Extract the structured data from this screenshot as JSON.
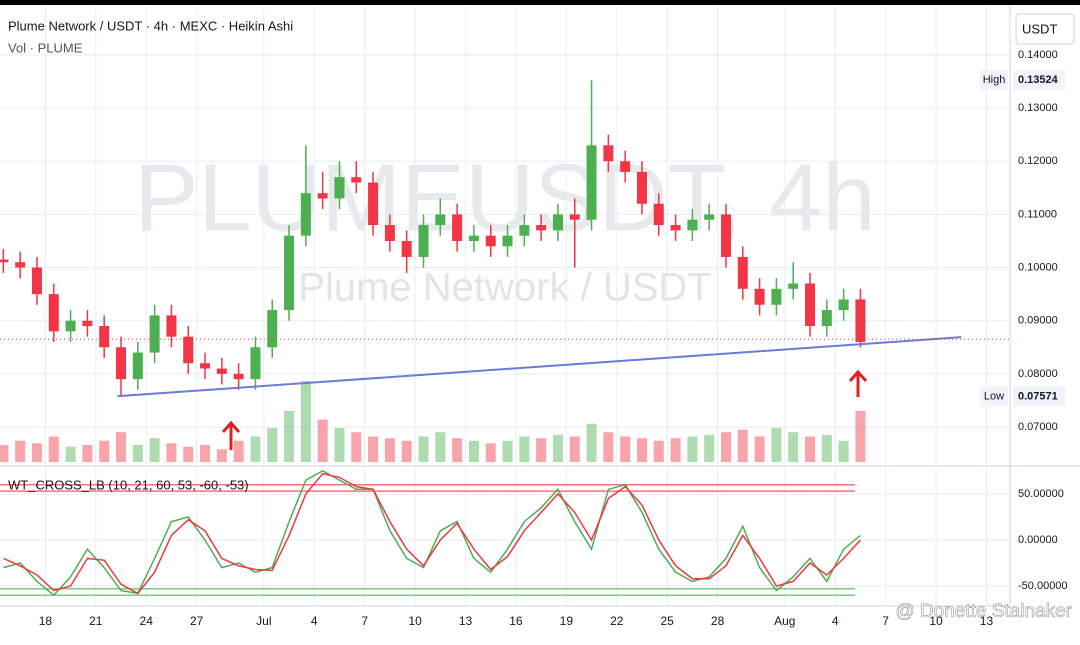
{
  "chart_data": [
    {
      "type": "candlestick",
      "title": "Plume Network / USDT · 4h · MEXC · Heikin Ashi",
      "subtitle": "Vol · PLUME",
      "watermark": "PLUMEUSDT, 4h",
      "watermark_subtitle": "Plume Network / USDT",
      "currency": "USDT",
      "x": [
        15.5,
        16.5,
        17.5,
        18.5,
        19.5,
        20.5,
        21.5,
        22.5,
        23.5,
        24.5,
        25.5,
        26.5,
        27.5,
        28.5,
        29.5,
        30.5,
        31.5,
        32.5,
        33.5,
        34.5,
        35.5,
        36.5,
        37.5,
        38.5,
        39.5,
        40.5,
        41.5,
        42.5,
        43.5,
        44.5,
        45.5,
        46.5,
        47.5,
        48.5,
        49.5,
        50.5,
        51.5,
        52.5,
        53.5,
        54.5,
        55.5,
        56.5,
        57.5,
        58.5,
        59.5,
        60.5,
        61.5,
        62.5,
        63.5,
        64.5,
        65.5,
        66.5
      ],
      "open": [
        0.1015,
        0.101,
        0.1,
        0.095,
        0.088,
        0.09,
        0.089,
        0.085,
        0.079,
        0.084,
        0.091,
        0.087,
        0.082,
        0.081,
        0.08,
        0.079,
        0.085,
        0.092,
        0.106,
        0.114,
        0.113,
        0.117,
        0.116,
        0.108,
        0.105,
        0.102,
        0.108,
        0.11,
        0.105,
        0.106,
        0.104,
        0.106,
        0.108,
        0.107,
        0.11,
        0.109,
        0.123,
        0.12,
        0.118,
        0.112,
        0.108,
        0.107,
        0.109,
        0.11,
        0.102,
        0.096,
        0.093,
        0.096,
        0.097,
        0.089,
        0.092,
        0.094
      ],
      "high": [
        0.1035,
        0.103,
        0.102,
        0.097,
        0.092,
        0.092,
        0.091,
        0.087,
        0.086,
        0.093,
        0.093,
        0.089,
        0.084,
        0.083,
        0.082,
        0.087,
        0.094,
        0.108,
        0.123,
        0.118,
        0.12,
        0.12,
        0.118,
        0.11,
        0.107,
        0.11,
        0.113,
        0.112,
        0.108,
        0.108,
        0.108,
        0.11,
        0.11,
        0.112,
        0.113,
        0.13524,
        0.125,
        0.122,
        0.12,
        0.114,
        0.11,
        0.111,
        0.112,
        0.112,
        0.104,
        0.098,
        0.098,
        0.101,
        0.099,
        0.094,
        0.096,
        0.096
      ],
      "low": [
        0.099,
        0.098,
        0.093,
        0.086,
        0.086,
        0.087,
        0.083,
        0.07571,
        0.077,
        0.082,
        0.085,
        0.08,
        0.079,
        0.078,
        0.077,
        0.077,
        0.083,
        0.09,
        0.104,
        0.111,
        0.111,
        0.114,
        0.106,
        0.103,
        0.099,
        0.1,
        0.106,
        0.103,
        0.103,
        0.102,
        0.102,
        0.104,
        0.105,
        0.105,
        0.1,
        0.107,
        0.118,
        0.116,
        0.11,
        0.106,
        0.105,
        0.105,
        0.107,
        0.1,
        0.094,
        0.091,
        0.091,
        0.094,
        0.087,
        0.087,
        0.09,
        0.085
      ],
      "close": [
        0.101,
        0.1,
        0.095,
        0.088,
        0.09,
        0.089,
        0.085,
        0.079,
        0.084,
        0.091,
        0.087,
        0.082,
        0.081,
        0.08,
        0.079,
        0.085,
        0.092,
        0.106,
        0.114,
        0.113,
        0.117,
        0.116,
        0.108,
        0.105,
        0.102,
        0.108,
        0.11,
        0.105,
        0.106,
        0.104,
        0.106,
        0.108,
        0.107,
        0.11,
        0.109,
        0.123,
        0.12,
        0.118,
        0.112,
        0.108,
        0.107,
        0.109,
        0.11,
        0.102,
        0.096,
        0.093,
        0.096,
        0.097,
        0.089,
        0.092,
        0.094,
        0.086
      ],
      "volume": [
        20,
        25,
        22,
        30,
        18,
        20,
        25,
        35,
        20,
        28,
        22,
        18,
        20,
        15,
        25,
        30,
        40,
        60,
        95,
        50,
        40,
        35,
        30,
        28,
        25,
        30,
        35,
        28,
        25,
        22,
        25,
        30,
        28,
        32,
        30,
        45,
        35,
        30,
        28,
        25,
        28,
        30,
        32,
        35,
        38,
        30,
        40,
        35,
        30,
        32,
        25,
        60
      ],
      "volume_lim": [
        0,
        100
      ],
      "up_color": "#4caf50",
      "down_color": "#f23645",
      "xlim": [
        15.3,
        75.4
      ],
      "xticks": [
        18,
        21,
        24,
        27,
        {
          "value": 31,
          "label": "Jul"
        },
        {
          "value": 34,
          "label": "4"
        },
        {
          "value": 37,
          "label": "7"
        },
        {
          "value": 40,
          "label": "10"
        },
        {
          "value": 43,
          "label": "13"
        },
        {
          "value": 46,
          "label": "16"
        },
        {
          "value": 49,
          "label": "19"
        },
        {
          "value": 52,
          "label": "22"
        },
        {
          "value": 55,
          "label": "25"
        },
        {
          "value": 58,
          "label": "28"
        },
        {
          "value": 62,
          "label": "Aug"
        },
        {
          "value": 65,
          "label": "4"
        },
        {
          "value": 68,
          "label": "7"
        },
        {
          "value": 71,
          "label": "10"
        },
        {
          "value": 74,
          "label": "13"
        }
      ],
      "ylim": [
        0.06285,
        0.1494
      ],
      "yticks": [
        {
          "value": 0.07,
          "label": "0.07000"
        },
        {
          "value": 0.08,
          "label": "0.08000"
        },
        {
          "value": 0.09,
          "label": "0.09000"
        },
        {
          "value": 0.1,
          "label": "0.10000"
        },
        {
          "value": 0.11,
          "label": "0.11000"
        },
        {
          "value": 0.12,
          "label": "0.12000"
        },
        {
          "value": 0.13,
          "label": "0.13000"
        },
        {
          "value": 0.14,
          "label": "0.14000"
        }
      ],
      "grid": true,
      "high_label": "High",
      "high_value": 0.13524,
      "low_label": "Low",
      "low_value": 0.07571,
      "price_line": 0.0865,
      "trendline": {
        "x": [
          22.3,
          72.5
        ],
        "y": [
          0.0758,
          0.0869
        ],
        "color": "#6c7bd9"
      }
    },
    {
      "type": "line",
      "title": "WT_CROSS_LB (10, 21, 60, 53, -60, -53)",
      "x": [
        15.5,
        16.5,
        17.5,
        18.5,
        19.5,
        20.5,
        21.5,
        22.5,
        23.5,
        24.5,
        25.5,
        26.5,
        27.5,
        28.5,
        29.5,
        30.5,
        31.5,
        32.5,
        33.5,
        34.5,
        35.5,
        36.5,
        37.5,
        38.5,
        39.5,
        40.5,
        41.5,
        42.5,
        43.5,
        44.5,
        45.5,
        46.5,
        47.5,
        48.5,
        49.5,
        50.5,
        51.5,
        52.5,
        53.5,
        54.5,
        55.5,
        56.5,
        57.5,
        58.5,
        59.5,
        60.5,
        61.5,
        62.5,
        63.5,
        64.5,
        65.5,
        66.5
      ],
      "series": [
        {
          "color": "#4caf50",
          "values": [
            -30,
            -25,
            -45,
            -60,
            -40,
            -10,
            -30,
            -55,
            -58,
            -20,
            20,
            25,
            0,
            -30,
            -25,
            -35,
            -30,
            20,
            65,
            75,
            65,
            55,
            55,
            10,
            -20,
            -30,
            10,
            20,
            -20,
            -35,
            -10,
            20,
            35,
            55,
            20,
            -10,
            55,
            60,
            30,
            -10,
            -35,
            -45,
            -40,
            -20,
            15,
            -30,
            -55,
            -40,
            -20,
            -45,
            -10,
            5
          ]
        },
        {
          "color": "#f23645",
          "values": [
            -20,
            -28,
            -38,
            -55,
            -50,
            -20,
            -22,
            -48,
            -58,
            -35,
            5,
            22,
            10,
            -20,
            -28,
            -32,
            -33,
            5,
            50,
            72,
            68,
            58,
            55,
            20,
            -10,
            -28,
            0,
            18,
            -10,
            -32,
            -18,
            10,
            30,
            50,
            30,
            0,
            45,
            58,
            38,
            0,
            -28,
            -42,
            -42,
            -28,
            5,
            -20,
            -50,
            -45,
            -25,
            -38,
            -20,
            0
          ]
        }
      ],
      "levels": [
        {
          "value": 60,
          "color": "#f23645"
        },
        {
          "value": 53,
          "color": "#f23645"
        },
        {
          "value": -60,
          "color": "#4caf50"
        },
        {
          "value": -53,
          "color": "#4caf50"
        }
      ],
      "xlim": [
        15.3,
        75.4
      ],
      "ylim": [
        -70.6,
        76
      ],
      "yticks": [
        {
          "value": 50,
          "label": "50.00000"
        },
        {
          "value": 0,
          "label": "0.00000"
        },
        {
          "value": -50,
          "label": "-50.00000"
        }
      ],
      "grid": true
    }
  ],
  "footer_text": "@ Donette Stalnaker"
}
